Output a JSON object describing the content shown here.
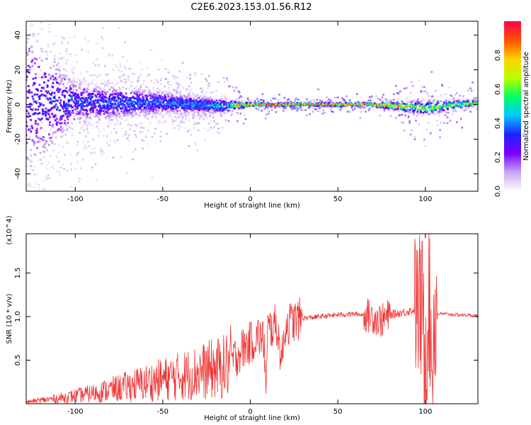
{
  "title": "C2E6.2023.153.01.56.R12",
  "chart_data": [
    {
      "type": "heatmap",
      "xlabel": "Height of straight line (km)",
      "ylabel": "Frequency (Hz)",
      "xlim": [
        -128,
        130
      ],
      "ylim": [
        -50,
        48
      ],
      "xticks": [
        -100,
        -50,
        0,
        50,
        100
      ],
      "yticks": [
        -40,
        -20,
        0,
        20,
        40
      ],
      "xtick_labels": [
        "-100",
        "-50",
        "0",
        "50",
        "100"
      ],
      "ytick_labels": [
        "-40",
        "-20",
        "0",
        "20",
        "40"
      ],
      "colorbar": {
        "label": "Normalized spectral amplitude",
        "range": [
          0,
          1
        ],
        "ticks": [
          0.0,
          0.2,
          0.4,
          0.6,
          0.8
        ],
        "tick_labels": [
          "0.0",
          "0.2",
          "0.4",
          "0.6",
          "0.8"
        ],
        "colormap": [
          "#ffffff",
          "#c8a6f0",
          "#7a00ff",
          "#2020ff",
          "#00c8ff",
          "#00ff60",
          "#b8ff00",
          "#ffd000",
          "#ff5000",
          "#ff0050"
        ]
      },
      "profile": [
        {
          "x": -128,
          "freq_center": 2,
          "spread_hz": 45,
          "peak_amplitude": 0.3
        },
        {
          "x": -100,
          "freq_center": 1,
          "spread_hz": 12,
          "peak_amplitude": 0.35
        },
        {
          "x": -50,
          "freq_center": 1,
          "spread_hz": 6,
          "peak_amplitude": 0.4
        },
        {
          "x": -15,
          "freq_center": -1,
          "spread_hz": 4,
          "peak_amplitude": 0.45
        },
        {
          "x": 0,
          "freq_center": 0,
          "spread_hz": 1,
          "peak_amplitude": 0.95
        },
        {
          "x": 30,
          "freq_center": 0,
          "spread_hz": 1,
          "peak_amplitude": 0.9
        },
        {
          "x": 70,
          "freq_center": 0,
          "spread_hz": 1,
          "peak_amplitude": 0.9
        },
        {
          "x": 100,
          "freq_center": -2,
          "spread_hz": 4,
          "peak_amplitude": 0.6
        },
        {
          "x": 130,
          "freq_center": 1,
          "spread_hz": 1.5,
          "peak_amplitude": 0.7
        }
      ]
    },
    {
      "type": "line",
      "xlabel": "Height of straight line (km)",
      "ylabel": "SNR (10 * v/v)",
      "y_multiplier": "(x10^4)",
      "xlim": [
        -128,
        130
      ],
      "ylim": [
        0,
        1.95
      ],
      "xticks": [
        -100,
        -50,
        0,
        50,
        100
      ],
      "yticks": [
        0.5,
        1.0,
        1.5
      ],
      "xtick_labels": [
        "-100",
        "-50",
        "0",
        "50",
        "100"
      ],
      "ytick_labels": [
        "0.5",
        "1.0",
        "1.5"
      ],
      "color": "#ee3333",
      "series": [
        {
          "x": [
            -128,
            -120,
            -110,
            -100,
            -90,
            -80,
            -70,
            -60,
            -50,
            -40,
            -30,
            -20,
            -15,
            -10,
            -5,
            0,
            5,
            8,
            9,
            10,
            15,
            18,
            20,
            25,
            30,
            40,
            50,
            60,
            65,
            70,
            75,
            80,
            85,
            90,
            95,
            98,
            100,
            102,
            104,
            105,
            108,
            110,
            120,
            130
          ],
          "y": [
            0.02,
            0.04,
            0.06,
            0.09,
            0.12,
            0.16,
            0.2,
            0.24,
            0.28,
            0.32,
            0.36,
            0.4,
            0.42,
            0.5,
            0.62,
            0.7,
            0.78,
            0.7,
            0.1,
            0.85,
            0.9,
            0.5,
            0.9,
            0.95,
            0.98,
            1.0,
            1.02,
            1.03,
            1.02,
            1.0,
            0.95,
            1.02,
            1.04,
            1.06,
            1.08,
            1.1,
            0.6,
            1.2,
            0.4,
            1.05,
            1.03,
            1.03,
            1.02,
            1.01
          ]
        }
      ]
    }
  ]
}
